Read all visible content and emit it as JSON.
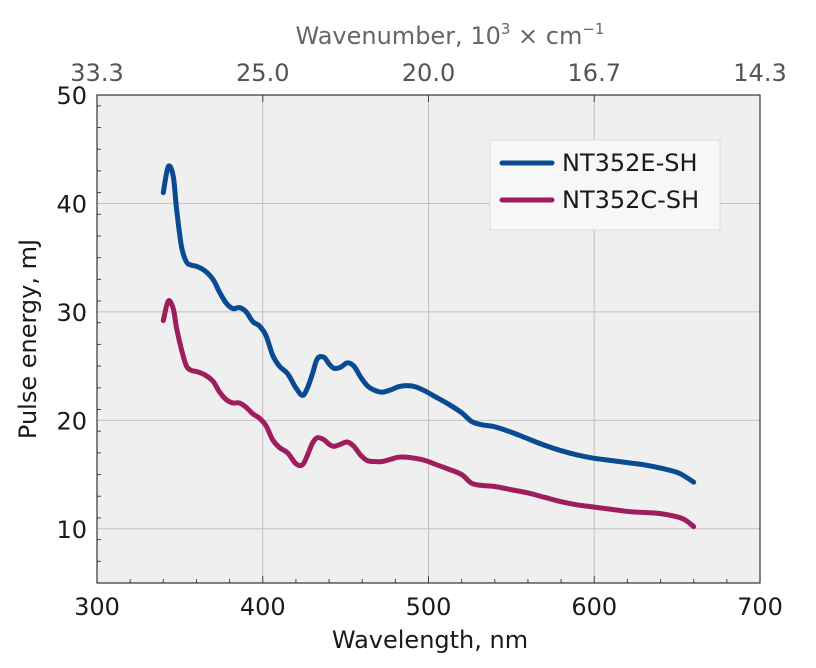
{
  "chart_data": {
    "type": "line",
    "xlabel": "Wavelength, nm",
    "ylabel": "Pulse energy, mJ",
    "top_axis": {
      "label_prefix": "Wavenumber, 10",
      "label_sup": "3",
      "label_mid": " × cm",
      "label_sup2": "−1",
      "ticks": [
        {
          "label": "33.3",
          "at_wavelength": 300
        },
        {
          "label": "25.0",
          "at_wavelength": 400
        },
        {
          "label": "20.0",
          "at_wavelength": 500
        },
        {
          "label": "16.7",
          "at_wavelength": 600
        },
        {
          "label": "14.3",
          "at_wavelength": 700
        }
      ]
    },
    "xlim": [
      300,
      700
    ],
    "ylim": [
      5,
      50
    ],
    "x_ticks": [
      300,
      400,
      500,
      600,
      700
    ],
    "y_ticks": [
      10,
      20,
      30,
      40,
      50
    ],
    "grid": true,
    "legend_position": "top-right",
    "background_color": "#efefef",
    "series": [
      {
        "name": "NT352E-SH",
        "color": "#0a4a91",
        "x": [
          340,
          343,
          346,
          348,
          351,
          354,
          357,
          360,
          365,
          370,
          374,
          378,
          382,
          386,
          390,
          394,
          398,
          402,
          406,
          410,
          415,
          420,
          424,
          427,
          430,
          433,
          437,
          440,
          443,
          447,
          451,
          455,
          459,
          463,
          467,
          472,
          477,
          482,
          487,
          492,
          498,
          505,
          512,
          520,
          526,
          532,
          540,
          550,
          560,
          570,
          580,
          590,
          600,
          610,
          620,
          630,
          640,
          650,
          655,
          660
        ],
        "y": [
          41.0,
          43.4,
          42.5,
          39.5,
          36.0,
          34.6,
          34.3,
          34.2,
          33.8,
          33.0,
          31.8,
          30.8,
          30.3,
          30.4,
          30.0,
          29.1,
          28.7,
          27.8,
          26.0,
          25.0,
          24.3,
          23.0,
          22.3,
          23.0,
          24.3,
          25.7,
          25.8,
          25.2,
          24.8,
          24.9,
          25.3,
          25.0,
          24.0,
          23.2,
          22.8,
          22.6,
          22.8,
          23.1,
          23.2,
          23.1,
          22.7,
          22.1,
          21.5,
          20.7,
          19.9,
          19.6,
          19.4,
          18.9,
          18.3,
          17.7,
          17.2,
          16.8,
          16.5,
          16.3,
          16.1,
          15.9,
          15.6,
          15.2,
          14.8,
          14.3
        ]
      },
      {
        "name": "NT352C-SH",
        "color": "#9e1d5e",
        "x": [
          340,
          343,
          346,
          348,
          351,
          354,
          357,
          360,
          365,
          370,
          374,
          378,
          382,
          386,
          390,
          394,
          398,
          402,
          406,
          410,
          415,
          420,
          424,
          427,
          430,
          433,
          437,
          440,
          443,
          447,
          451,
          455,
          459,
          463,
          467,
          472,
          477,
          482,
          487,
          492,
          498,
          505,
          512,
          520,
          526,
          532,
          540,
          550,
          560,
          570,
          580,
          590,
          600,
          610,
          620,
          630,
          640,
          650,
          655,
          660
        ],
        "y": [
          29.2,
          31.0,
          30.3,
          28.5,
          26.5,
          25.0,
          24.6,
          24.5,
          24.2,
          23.6,
          22.6,
          21.9,
          21.6,
          21.6,
          21.2,
          20.6,
          20.2,
          19.5,
          18.2,
          17.5,
          17.0,
          16.0,
          15.9,
          16.8,
          17.9,
          18.4,
          18.2,
          17.8,
          17.6,
          17.8,
          18.0,
          17.6,
          16.8,
          16.3,
          16.2,
          16.2,
          16.4,
          16.6,
          16.6,
          16.5,
          16.3,
          15.9,
          15.5,
          15.0,
          14.2,
          14.0,
          13.9,
          13.6,
          13.3,
          12.9,
          12.5,
          12.2,
          12.0,
          11.8,
          11.6,
          11.5,
          11.4,
          11.1,
          10.8,
          10.2
        ]
      }
    ]
  }
}
